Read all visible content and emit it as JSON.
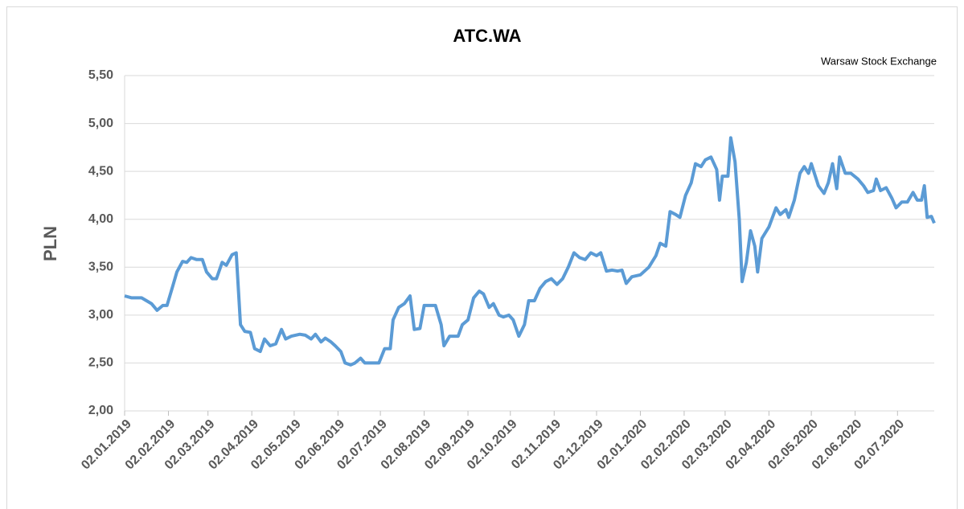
{
  "chart_data": {
    "type": "line",
    "title": "ATC.WA",
    "subtitle": "Warsaw Stock Exchange",
    "y_label": "PLN",
    "xlim": [
      "02.01.2019",
      "28.07.2020"
    ],
    "xticks": [
      "02.01.2019",
      "02.02.2019",
      "02.03.2019",
      "02.04.2019",
      "02.05.2019",
      "02.06.2019",
      "02.07.2019",
      "02.08.2019",
      "02.09.2019",
      "02.10.2019",
      "02.11.2019",
      "02.12.2019",
      "02.01.2020",
      "02.02.2020",
      "02.03.2020",
      "02.04.2020",
      "02.05.2020",
      "02.06.2020",
      "02.07.2020"
    ],
    "ylim": [
      2,
      5.5
    ],
    "yticks": [
      {
        "value": 2,
        "label": "2,00"
      },
      {
        "value": 2.5,
        "label": "2,50"
      },
      {
        "value": 3,
        "label": "3,00"
      },
      {
        "value": 3.5,
        "label": "3,50"
      },
      {
        "value": 4,
        "label": "4,00"
      },
      {
        "value": 4.5,
        "label": "4,50"
      },
      {
        "value": 5,
        "label": "5,00"
      },
      {
        "value": 5.5,
        "label": "5,50"
      }
    ],
    "grid": true,
    "x": [
      "02.01.2019",
      "07.01.2019",
      "14.01.2019",
      "21.01.2019",
      "25.01.2019",
      "29.01.2019",
      "01.02.2019",
      "05.02.2019",
      "08.02.2019",
      "12.02.2019",
      "15.02.2019",
      "18.02.2019",
      "22.02.2019",
      "26.02.2019",
      "01.03.2019",
      "05.03.2019",
      "08.03.2019",
      "12.03.2019",
      "15.03.2019",
      "19.03.2019",
      "22.03.2019",
      "25.03.2019",
      "28.03.2019",
      "01.04.2019",
      "04.04.2019",
      "08.04.2019",
      "11.04.2019",
      "15.04.2019",
      "19.04.2019",
      "23.04.2019",
      "26.04.2019",
      "30.04.2019",
      "06.05.2019",
      "10.05.2019",
      "14.05.2019",
      "17.05.2019",
      "21.05.2019",
      "24.05.2019",
      "28.05.2019",
      "31.05.2019",
      "04.06.2019",
      "07.06.2019",
      "11.06.2019",
      "14.06.2019",
      "18.06.2019",
      "21.06.2019",
      "25.06.2019",
      "01.07.2019",
      "05.07.2019",
      "09.07.2019",
      "11.07.2019",
      "15.07.2019",
      "19.07.2019",
      "23.07.2019",
      "26.07.2019",
      "30.07.2019",
      "02.08.2019",
      "07.08.2019",
      "10.08.2019",
      "14.08.2019",
      "16.08.2019",
      "20.08.2019",
      "26.08.2019",
      "29.08.2019",
      "02.09.2019",
      "06.09.2019",
      "10.09.2019",
      "13.09.2019",
      "17.09.2019",
      "20.09.2019",
      "24.09.2019",
      "27.09.2019",
      "01.10.2019",
      "04.10.2019",
      "08.10.2019",
      "12.10.2019",
      "15.10.2019",
      "19.10.2019",
      "23.10.2019",
      "27.10.2019",
      "31.10.2019",
      "04.11.2019",
      "08.11.2019",
      "12.11.2019",
      "16.11.2019",
      "20.11.2019",
      "24.11.2019",
      "28.11.2019",
      "02.12.2019",
      "05.12.2019",
      "09.12.2019",
      "13.12.2019",
      "17.12.2019",
      "20.12.2019",
      "23.12.2019",
      "27.12.2019",
      "02.01.2020",
      "08.01.2020",
      "13.01.2020",
      "16.01.2020",
      "20.01.2020",
      "23.01.2020",
      "27.01.2020",
      "30.01.2020",
      "03.02.2020",
      "07.02.2020",
      "10.02.2020",
      "14.02.2020",
      "17.02.2020",
      "21.02.2020",
      "25.02.2020",
      "27.02.2020",
      "29.02.2020",
      "04.03.2020",
      "06.03.2020",
      "09.03.2020",
      "12.03.2020",
      "14.03.2020",
      "17.03.2020",
      "20.03.2020",
      "23.03.2020",
      "25.03.2020",
      "28.03.2020",
      "02.04.2020",
      "07.04.2020",
      "10.04.2020",
      "14.04.2020",
      "16.04.2020",
      "20.04.2020",
      "24.04.2020",
      "27.04.2020",
      "30.04.2020",
      "02.05.2020",
      "07.05.2020",
      "11.05.2020",
      "14.05.2020",
      "17.05.2020",
      "20.05.2020",
      "22.05.2020",
      "26.05.2020",
      "30.05.2020",
      "04.06.2020",
      "08.06.2020",
      "11.06.2020",
      "15.06.2020",
      "17.06.2020",
      "20.06.2020",
      "24.06.2020",
      "28.06.2020",
      "01.07.2020",
      "05.07.2020",
      "09.07.2020",
      "13.07.2020",
      "16.07.2020",
      "19.07.2020",
      "21.07.2020",
      "23.07.2020",
      "26.07.2020",
      "28.07.2020"
    ],
    "series": [
      {
        "color": "#5b9bd5",
        "values": [
          3.2,
          3.18,
          3.18,
          3.12,
          3.05,
          3.1,
          3.1,
          3.3,
          3.45,
          3.56,
          3.55,
          3.6,
          3.58,
          3.58,
          3.45,
          3.38,
          3.38,
          3.55,
          3.52,
          3.63,
          3.65,
          2.9,
          2.83,
          2.82,
          2.65,
          2.62,
          2.75,
          2.68,
          2.7,
          2.85,
          2.75,
          2.78,
          2.8,
          2.79,
          2.75,
          2.8,
          2.72,
          2.76,
          2.72,
          2.68,
          2.62,
          2.5,
          2.48,
          2.5,
          2.55,
          2.5,
          2.5,
          2.5,
          2.65,
          2.65,
          2.95,
          3.08,
          3.12,
          3.2,
          2.85,
          2.86,
          3.1,
          3.1,
          3.1,
          2.9,
          2.68,
          2.78,
          2.78,
          2.9,
          2.95,
          3.18,
          3.25,
          3.22,
          3.08,
          3.12,
          3.0,
          2.98,
          3.0,
          2.95,
          2.78,
          2.9,
          3.15,
          3.15,
          3.28,
          3.35,
          3.38,
          3.32,
          3.38,
          3.5,
          3.65,
          3.6,
          3.58,
          3.65,
          3.62,
          3.65,
          3.46,
          3.47,
          3.46,
          3.47,
          3.33,
          3.4,
          3.42,
          3.5,
          3.62,
          3.75,
          3.72,
          4.08,
          4.05,
          4.02,
          4.25,
          4.38,
          4.58,
          4.55,
          4.62,
          4.65,
          4.52,
          4.2,
          4.45,
          4.45,
          4.85,
          4.6,
          4.0,
          3.35,
          3.55,
          3.88,
          3.72,
          3.45,
          3.8,
          3.92,
          4.12,
          4.05,
          4.1,
          4.02,
          4.2,
          4.48,
          4.55,
          4.48,
          4.58,
          4.35,
          4.27,
          4.38,
          4.58,
          4.32,
          4.65,
          4.48,
          4.48,
          4.42,
          4.35,
          4.28,
          4.3,
          4.42,
          4.3,
          4.33,
          4.22,
          4.12,
          4.18,
          4.18,
          4.28,
          4.2,
          4.2,
          4.35,
          4.02,
          4.03,
          3.96
        ]
      }
    ]
  }
}
